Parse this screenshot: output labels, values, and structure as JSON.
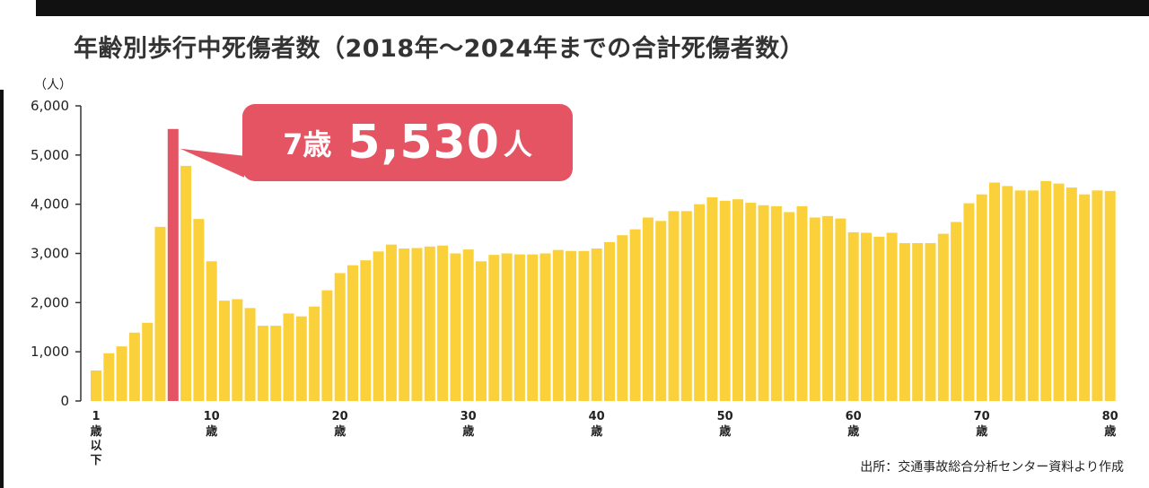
{
  "title": "年齢別歩行中死傷者数（2018年～2024年までの合計死傷者数）",
  "source": "出所：交通事故総合分析センター資料より作成",
  "callout": {
    "age": "7歳",
    "value": "5,530",
    "unit": "人"
  },
  "colors": {
    "bar": "#fad13a",
    "highlight": "#e55463"
  },
  "chart_data": {
    "type": "bar",
    "title": "年齢別歩行中死傷者数（2018年～2024年までの合計死傷者数）",
    "ylabel": "（人）",
    "xlabel": "",
    "ylim": [
      0,
      6000
    ],
    "yticks": [
      {
        "v": 0,
        "label": "0"
      },
      {
        "v": 1000,
        "label": "1,000"
      },
      {
        "v": 2000,
        "label": "2,000"
      },
      {
        "v": 3000,
        "label": "3,000"
      },
      {
        "v": 4000,
        "label": "4,000"
      },
      {
        "v": 5000,
        "label": "5,000"
      },
      {
        "v": 6000,
        "label": "6,000"
      }
    ],
    "xticks": [
      {
        "age": 1,
        "label": "1",
        "unit": "歳以下"
      },
      {
        "age": 10,
        "label": "10",
        "unit": "歳"
      },
      {
        "age": 20,
        "label": "20",
        "unit": "歳"
      },
      {
        "age": 30,
        "label": "30",
        "unit": "歳"
      },
      {
        "age": 40,
        "label": "40",
        "unit": "歳"
      },
      {
        "age": 50,
        "label": "50",
        "unit": "歳"
      },
      {
        "age": 60,
        "label": "60",
        "unit": "歳"
      },
      {
        "age": 70,
        "label": "70",
        "unit": "歳"
      },
      {
        "age": 80,
        "label": "80",
        "unit": "歳"
      }
    ],
    "highlight_age": 7,
    "ages": [
      1,
      2,
      3,
      4,
      5,
      6,
      7,
      8,
      9,
      10,
      11,
      12,
      13,
      14,
      15,
      16,
      17,
      18,
      19,
      20,
      21,
      22,
      23,
      24,
      25,
      26,
      27,
      28,
      29,
      30,
      31,
      32,
      33,
      34,
      35,
      36,
      37,
      38,
      39,
      40,
      41,
      42,
      43,
      44,
      45,
      46,
      47,
      48,
      49,
      50,
      51,
      52,
      53,
      54,
      55,
      56,
      57,
      58,
      59,
      60,
      61,
      62,
      63,
      64,
      65,
      66,
      67,
      68,
      69,
      70,
      71,
      72,
      73,
      74,
      75,
      76,
      77,
      78,
      79,
      80
    ],
    "values": [
      620,
      970,
      1110,
      1390,
      1590,
      3540,
      5530,
      4780,
      3700,
      2840,
      2040,
      2070,
      1890,
      1530,
      1530,
      1780,
      1720,
      1920,
      2250,
      2600,
      2760,
      2860,
      3040,
      3180,
      3100,
      3110,
      3140,
      3160,
      3000,
      3080,
      2840,
      2970,
      3000,
      2980,
      2980,
      3000,
      3070,
      3050,
      3050,
      3100,
      3230,
      3370,
      3490,
      3730,
      3660,
      3860,
      3860,
      4000,
      4140,
      4070,
      4100,
      4030,
      3980,
      3960,
      3840,
      3960,
      3730,
      3760,
      3710,
      3430,
      3420,
      3340,
      3420,
      3210,
      3210,
      3210,
      3400,
      3640,
      4020,
      4200,
      4440,
      4370,
      4280,
      4280,
      4470,
      4420,
      4340,
      4200,
      4280,
      4270
    ]
  }
}
